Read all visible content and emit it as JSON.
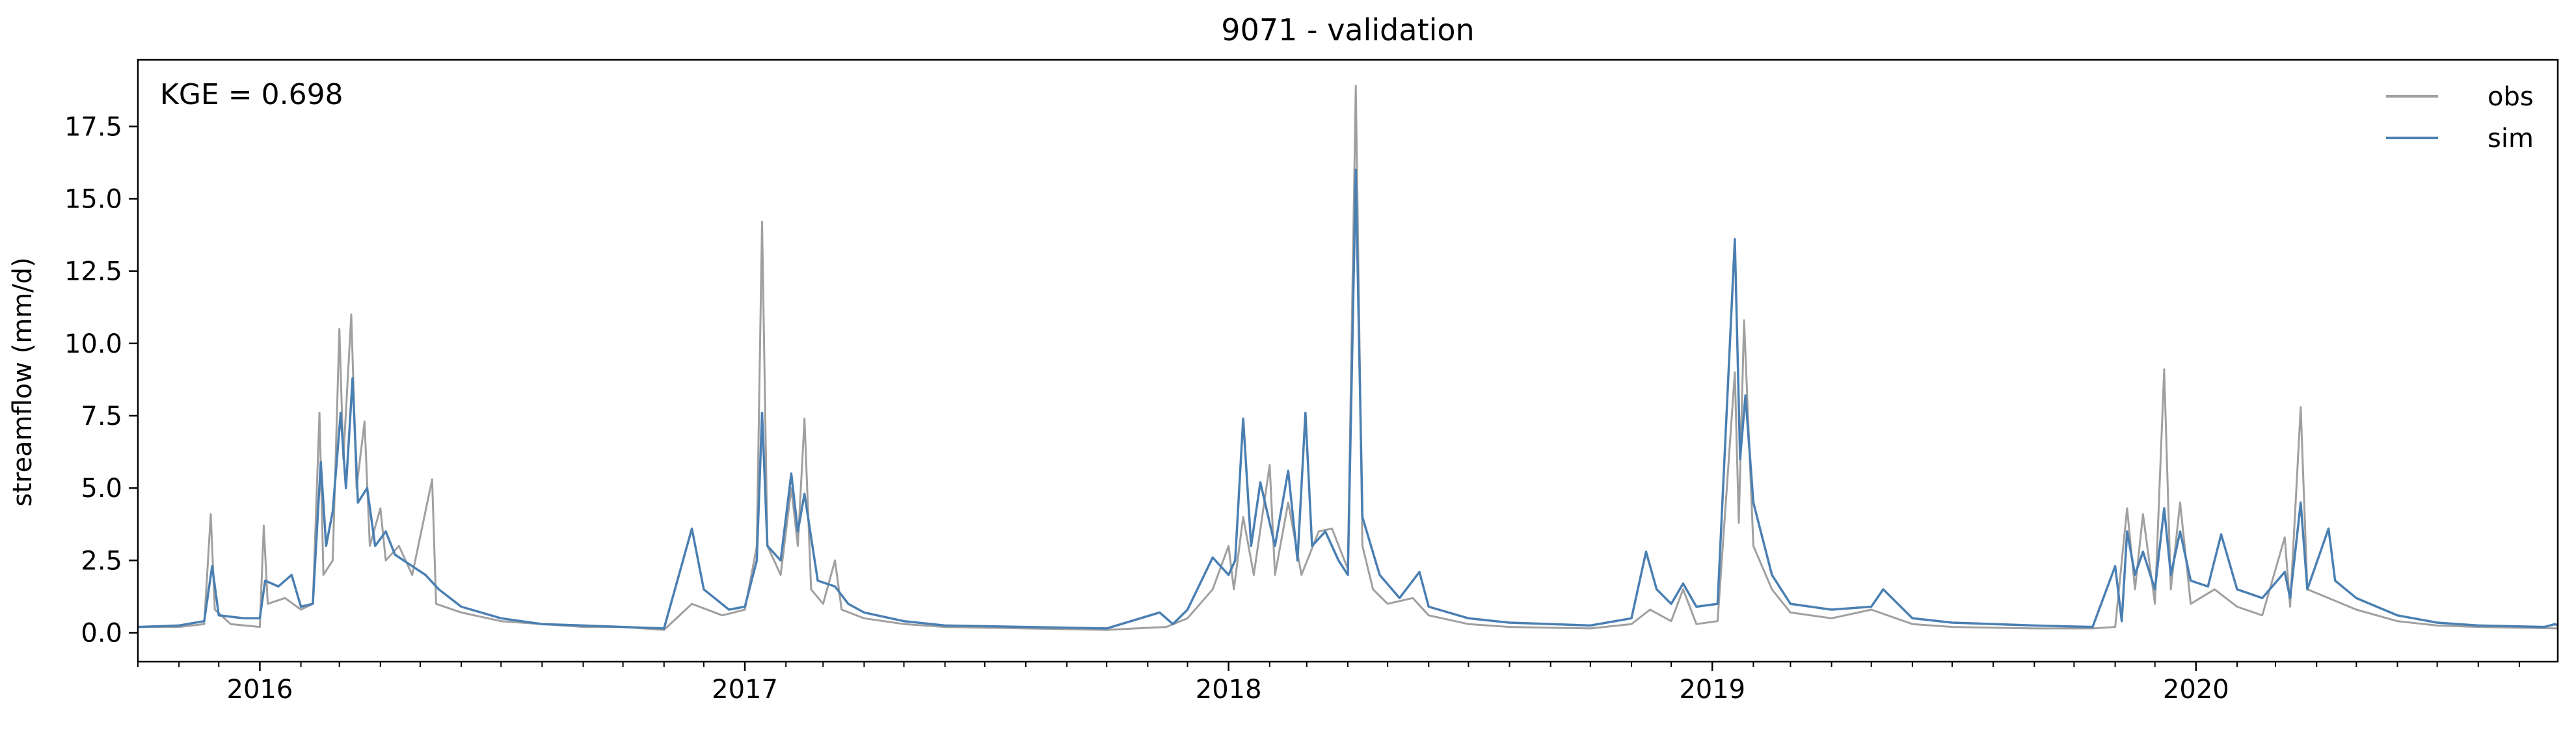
{
  "chart_data": {
    "type": "line",
    "title": "9071 - validation",
    "xlabel": "",
    "ylabel": "streamflow (mm/d)",
    "annotation": "KGE = 0.698",
    "xlim": [
      "2015-10-01",
      "2020-09-30"
    ],
    "ylim": [
      -1.0,
      19.8
    ],
    "x_ticks_major": [
      "2016-01-01",
      "2017-01-01",
      "2018-01-01",
      "2019-01-01",
      "2020-01-01"
    ],
    "x_tick_labels": [
      "2016",
      "2017",
      "2018",
      "2019",
      "2020"
    ],
    "y_ticks": [
      0.0,
      2.5,
      5.0,
      7.5,
      10.0,
      12.5,
      15.0,
      17.5
    ],
    "y_tick_labels": [
      "0.0",
      "2.5",
      "5.0",
      "7.5",
      "10.0",
      "12.5",
      "15.0",
      "17.5"
    ],
    "grid": false,
    "legend_position": "top-right",
    "series": [
      {
        "name": "obs",
        "color": "#a0a0a0",
        "points": [
          [
            "2015-10-01",
            0.2
          ],
          [
            "2015-11-01",
            0.2
          ],
          [
            "2015-11-20",
            0.3
          ],
          [
            "2015-11-25",
            4.1
          ],
          [
            "2015-11-28",
            0.8
          ],
          [
            "2015-12-10",
            0.3
          ],
          [
            "2016-01-01",
            0.2
          ],
          [
            "2016-01-04",
            3.7
          ],
          [
            "2016-01-07",
            1.0
          ],
          [
            "2016-01-20",
            1.2
          ],
          [
            "2016-02-01",
            0.8
          ],
          [
            "2016-02-10",
            1.0
          ],
          [
            "2016-02-15",
            7.6
          ],
          [
            "2016-02-18",
            2.0
          ],
          [
            "2016-02-25",
            2.5
          ],
          [
            "2016-03-01",
            10.5
          ],
          [
            "2016-03-04",
            6.0
          ],
          [
            "2016-03-10",
            11.0
          ],
          [
            "2016-03-14",
            5.0
          ],
          [
            "2016-03-20",
            7.3
          ],
          [
            "2016-03-24",
            3.0
          ],
          [
            "2016-04-01",
            4.3
          ],
          [
            "2016-04-05",
            2.5
          ],
          [
            "2016-04-15",
            3.0
          ],
          [
            "2016-04-25",
            2.0
          ],
          [
            "2016-05-10",
            5.3
          ],
          [
            "2016-05-13",
            1.0
          ],
          [
            "2016-06-01",
            0.7
          ],
          [
            "2016-07-01",
            0.4
          ],
          [
            "2016-08-01",
            0.3
          ],
          [
            "2016-09-01",
            0.2
          ],
          [
            "2016-10-01",
            0.2
          ],
          [
            "2016-11-01",
            0.1
          ],
          [
            "2016-11-22",
            1.0
          ],
          [
            "2016-12-15",
            0.6
          ],
          [
            "2017-01-01",
            0.8
          ],
          [
            "2017-01-10",
            3.0
          ],
          [
            "2017-01-14",
            14.2
          ],
          [
            "2017-01-18",
            3.0
          ],
          [
            "2017-01-28",
            2.0
          ],
          [
            "2017-02-05",
            5.0
          ],
          [
            "2017-02-10",
            3.0
          ],
          [
            "2017-02-15",
            7.4
          ],
          [
            "2017-02-20",
            1.5
          ],
          [
            "2017-03-01",
            1.0
          ],
          [
            "2017-03-10",
            2.5
          ],
          [
            "2017-03-15",
            0.8
          ],
          [
            "2017-04-01",
            0.5
          ],
          [
            "2017-05-01",
            0.3
          ],
          [
            "2017-06-01",
            0.2
          ],
          [
            "2017-08-01",
            0.15
          ],
          [
            "2017-10-01",
            0.1
          ],
          [
            "2017-11-15",
            0.2
          ],
          [
            "2017-12-01",
            0.5
          ],
          [
            "2017-12-20",
            1.5
          ],
          [
            "2018-01-01",
            3.0
          ],
          [
            "2018-01-05",
            1.5
          ],
          [
            "2018-01-12",
            4.0
          ],
          [
            "2018-01-20",
            2.0
          ],
          [
            "2018-02-01",
            5.8
          ],
          [
            "2018-02-05",
            2.0
          ],
          [
            "2018-02-15",
            4.5
          ],
          [
            "2018-02-25",
            2.0
          ],
          [
            "2018-03-10",
            3.5
          ],
          [
            "2018-03-20",
            3.6
          ],
          [
            "2018-04-01",
            2.2
          ],
          [
            "2018-04-07",
            18.9
          ],
          [
            "2018-04-12",
            3.0
          ],
          [
            "2018-04-20",
            1.5
          ],
          [
            "2018-05-01",
            1.0
          ],
          [
            "2018-05-20",
            1.2
          ],
          [
            "2018-06-01",
            0.6
          ],
          [
            "2018-07-01",
            0.3
          ],
          [
            "2018-08-01",
            0.2
          ],
          [
            "2018-10-01",
            0.15
          ],
          [
            "2018-11-01",
            0.3
          ],
          [
            "2018-11-15",
            0.8
          ],
          [
            "2018-12-01",
            0.4
          ],
          [
            "2018-12-10",
            1.5
          ],
          [
            "2018-12-20",
            0.3
          ],
          [
            "2019-01-05",
            0.4
          ],
          [
            "2019-01-18",
            9.0
          ],
          [
            "2019-01-21",
            3.8
          ],
          [
            "2019-01-25",
            10.8
          ],
          [
            "2019-02-01",
            3.0
          ],
          [
            "2019-02-15",
            1.5
          ],
          [
            "2019-03-01",
            0.7
          ],
          [
            "2019-04-01",
            0.5
          ],
          [
            "2019-05-01",
            0.8
          ],
          [
            "2019-06-01",
            0.3
          ],
          [
            "2019-07-01",
            0.2
          ],
          [
            "2019-09-01",
            0.15
          ],
          [
            "2019-10-15",
            0.15
          ],
          [
            "2019-11-01",
            0.2
          ],
          [
            "2019-11-10",
            4.3
          ],
          [
            "2019-11-16",
            1.5
          ],
          [
            "2019-11-22",
            4.1
          ],
          [
            "2019-12-01",
            1.0
          ],
          [
            "2019-12-08",
            9.1
          ],
          [
            "2019-12-13",
            1.5
          ],
          [
            "2019-12-20",
            4.5
          ],
          [
            "2019-12-28",
            1.0
          ],
          [
            "2020-01-15",
            1.5
          ],
          [
            "2020-02-01",
            0.9
          ],
          [
            "2020-02-20",
            0.6
          ],
          [
            "2020-03-08",
            3.3
          ],
          [
            "2020-03-12",
            0.9
          ],
          [
            "2020-03-20",
            7.8
          ],
          [
            "2020-03-25",
            1.5
          ],
          [
            "2020-04-10",
            1.2
          ],
          [
            "2020-05-01",
            0.8
          ],
          [
            "2020-06-01",
            0.4
          ],
          [
            "2020-07-01",
            0.25
          ],
          [
            "2020-08-01",
            0.2
          ],
          [
            "2020-09-30",
            0.15
          ]
        ]
      },
      {
        "name": "sim",
        "color": "#4a7fb2",
        "points": [
          [
            "2015-10-01",
            0.2
          ],
          [
            "2015-11-01",
            0.25
          ],
          [
            "2015-11-20",
            0.4
          ],
          [
            "2015-11-26",
            2.3
          ],
          [
            "2015-12-01",
            0.6
          ],
          [
            "2015-12-20",
            0.5
          ],
          [
            "2016-01-01",
            0.5
          ],
          [
            "2016-01-05",
            1.8
          ],
          [
            "2016-01-15",
            1.6
          ],
          [
            "2016-01-25",
            2.0
          ],
          [
            "2016-02-01",
            0.9
          ],
          [
            "2016-02-10",
            1.0
          ],
          [
            "2016-02-16",
            5.9
          ],
          [
            "2016-02-20",
            3.0
          ],
          [
            "2016-02-25",
            4.2
          ],
          [
            "2016-03-02",
            7.6
          ],
          [
            "2016-03-06",
            5.0
          ],
          [
            "2016-03-11",
            8.8
          ],
          [
            "2016-03-15",
            4.5
          ],
          [
            "2016-03-22",
            5.0
          ],
          [
            "2016-03-28",
            3.0
          ],
          [
            "2016-04-05",
            3.5
          ],
          [
            "2016-04-12",
            2.7
          ],
          [
            "2016-04-25",
            2.3
          ],
          [
            "2016-05-05",
            2.0
          ],
          [
            "2016-05-15",
            1.5
          ],
          [
            "2016-06-01",
            0.9
          ],
          [
            "2016-07-01",
            0.5
          ],
          [
            "2016-08-01",
            0.3
          ],
          [
            "2016-09-01",
            0.25
          ],
          [
            "2016-10-01",
            0.2
          ],
          [
            "2016-11-01",
            0.15
          ],
          [
            "2016-11-22",
            3.6
          ],
          [
            "2016-12-01",
            1.5
          ],
          [
            "2016-12-20",
            0.8
          ],
          [
            "2017-01-01",
            0.9
          ],
          [
            "2017-01-10",
            2.5
          ],
          [
            "2017-01-14",
            7.6
          ],
          [
            "2017-01-18",
            3.0
          ],
          [
            "2017-01-28",
            2.5
          ],
          [
            "2017-02-05",
            5.5
          ],
          [
            "2017-02-10",
            3.5
          ],
          [
            "2017-02-15",
            4.8
          ],
          [
            "2017-02-25",
            1.8
          ],
          [
            "2017-03-10",
            1.6
          ],
          [
            "2017-03-20",
            1.0
          ],
          [
            "2017-04-01",
            0.7
          ],
          [
            "2017-05-01",
            0.4
          ],
          [
            "2017-06-01",
            0.25
          ],
          [
            "2017-08-01",
            0.2
          ],
          [
            "2017-10-01",
            0.15
          ],
          [
            "2017-11-10",
            0.7
          ],
          [
            "2017-11-20",
            0.3
          ],
          [
            "2017-12-01",
            0.8
          ],
          [
            "2017-12-20",
            2.6
          ],
          [
            "2018-01-01",
            2.0
          ],
          [
            "2018-01-06",
            2.5
          ],
          [
            "2018-01-12",
            7.4
          ],
          [
            "2018-01-18",
            3.0
          ],
          [
            "2018-01-25",
            5.2
          ],
          [
            "2018-02-05",
            3.0
          ],
          [
            "2018-02-15",
            5.6
          ],
          [
            "2018-02-22",
            2.5
          ],
          [
            "2018-02-28",
            7.6
          ],
          [
            "2018-03-05",
            3.0
          ],
          [
            "2018-03-15",
            3.5
          ],
          [
            "2018-03-25",
            2.5
          ],
          [
            "2018-04-01",
            2.0
          ],
          [
            "2018-04-07",
            16.0
          ],
          [
            "2018-04-12",
            4.0
          ],
          [
            "2018-04-25",
            2.0
          ],
          [
            "2018-05-10",
            1.2
          ],
          [
            "2018-05-25",
            2.1
          ],
          [
            "2018-06-01",
            0.9
          ],
          [
            "2018-07-01",
            0.5
          ],
          [
            "2018-08-01",
            0.35
          ],
          [
            "2018-10-01",
            0.25
          ],
          [
            "2018-11-01",
            0.5
          ],
          [
            "2018-11-12",
            2.8
          ],
          [
            "2018-11-20",
            1.5
          ],
          [
            "2018-12-01",
            1.0
          ],
          [
            "2018-12-10",
            1.7
          ],
          [
            "2018-12-20",
            0.9
          ],
          [
            "2019-01-05",
            1.0
          ],
          [
            "2019-01-18",
            13.6
          ],
          [
            "2019-01-22",
            6.0
          ],
          [
            "2019-01-26",
            8.2
          ],
          [
            "2019-02-01",
            4.5
          ],
          [
            "2019-02-15",
            2.0
          ],
          [
            "2019-03-01",
            1.0
          ],
          [
            "2019-04-01",
            0.8
          ],
          [
            "2019-05-01",
            0.9
          ],
          [
            "2019-05-10",
            1.5
          ],
          [
            "2019-06-01",
            0.5
          ],
          [
            "2019-07-01",
            0.35
          ],
          [
            "2019-09-01",
            0.25
          ],
          [
            "2019-10-15",
            0.2
          ],
          [
            "2019-11-01",
            2.3
          ],
          [
            "2019-11-06",
            0.4
          ],
          [
            "2019-11-10",
            3.5
          ],
          [
            "2019-11-16",
            2.0
          ],
          [
            "2019-11-22",
            2.8
          ],
          [
            "2019-12-01",
            1.5
          ],
          [
            "2019-12-08",
            4.3
          ],
          [
            "2019-12-13",
            2.0
          ],
          [
            "2019-12-20",
            3.5
          ],
          [
            "2019-12-28",
            1.8
          ],
          [
            "2020-01-10",
            1.6
          ],
          [
            "2020-01-20",
            3.4
          ],
          [
            "2020-02-01",
            1.5
          ],
          [
            "2020-02-20",
            1.2
          ],
          [
            "2020-03-08",
            2.1
          ],
          [
            "2020-03-12",
            1.2
          ],
          [
            "2020-03-20",
            4.5
          ],
          [
            "2020-03-25",
            1.5
          ],
          [
            "2020-04-10",
            3.6
          ],
          [
            "2020-04-15",
            1.8
          ],
          [
            "2020-05-01",
            1.2
          ],
          [
            "2020-06-01",
            0.6
          ],
          [
            "2020-07-01",
            0.35
          ],
          [
            "2020-08-01",
            0.25
          ],
          [
            "2020-09-20",
            0.2
          ],
          [
            "2020-09-28",
            0.3
          ],
          [
            "2020-09-30",
            0.25
          ]
        ]
      }
    ]
  }
}
